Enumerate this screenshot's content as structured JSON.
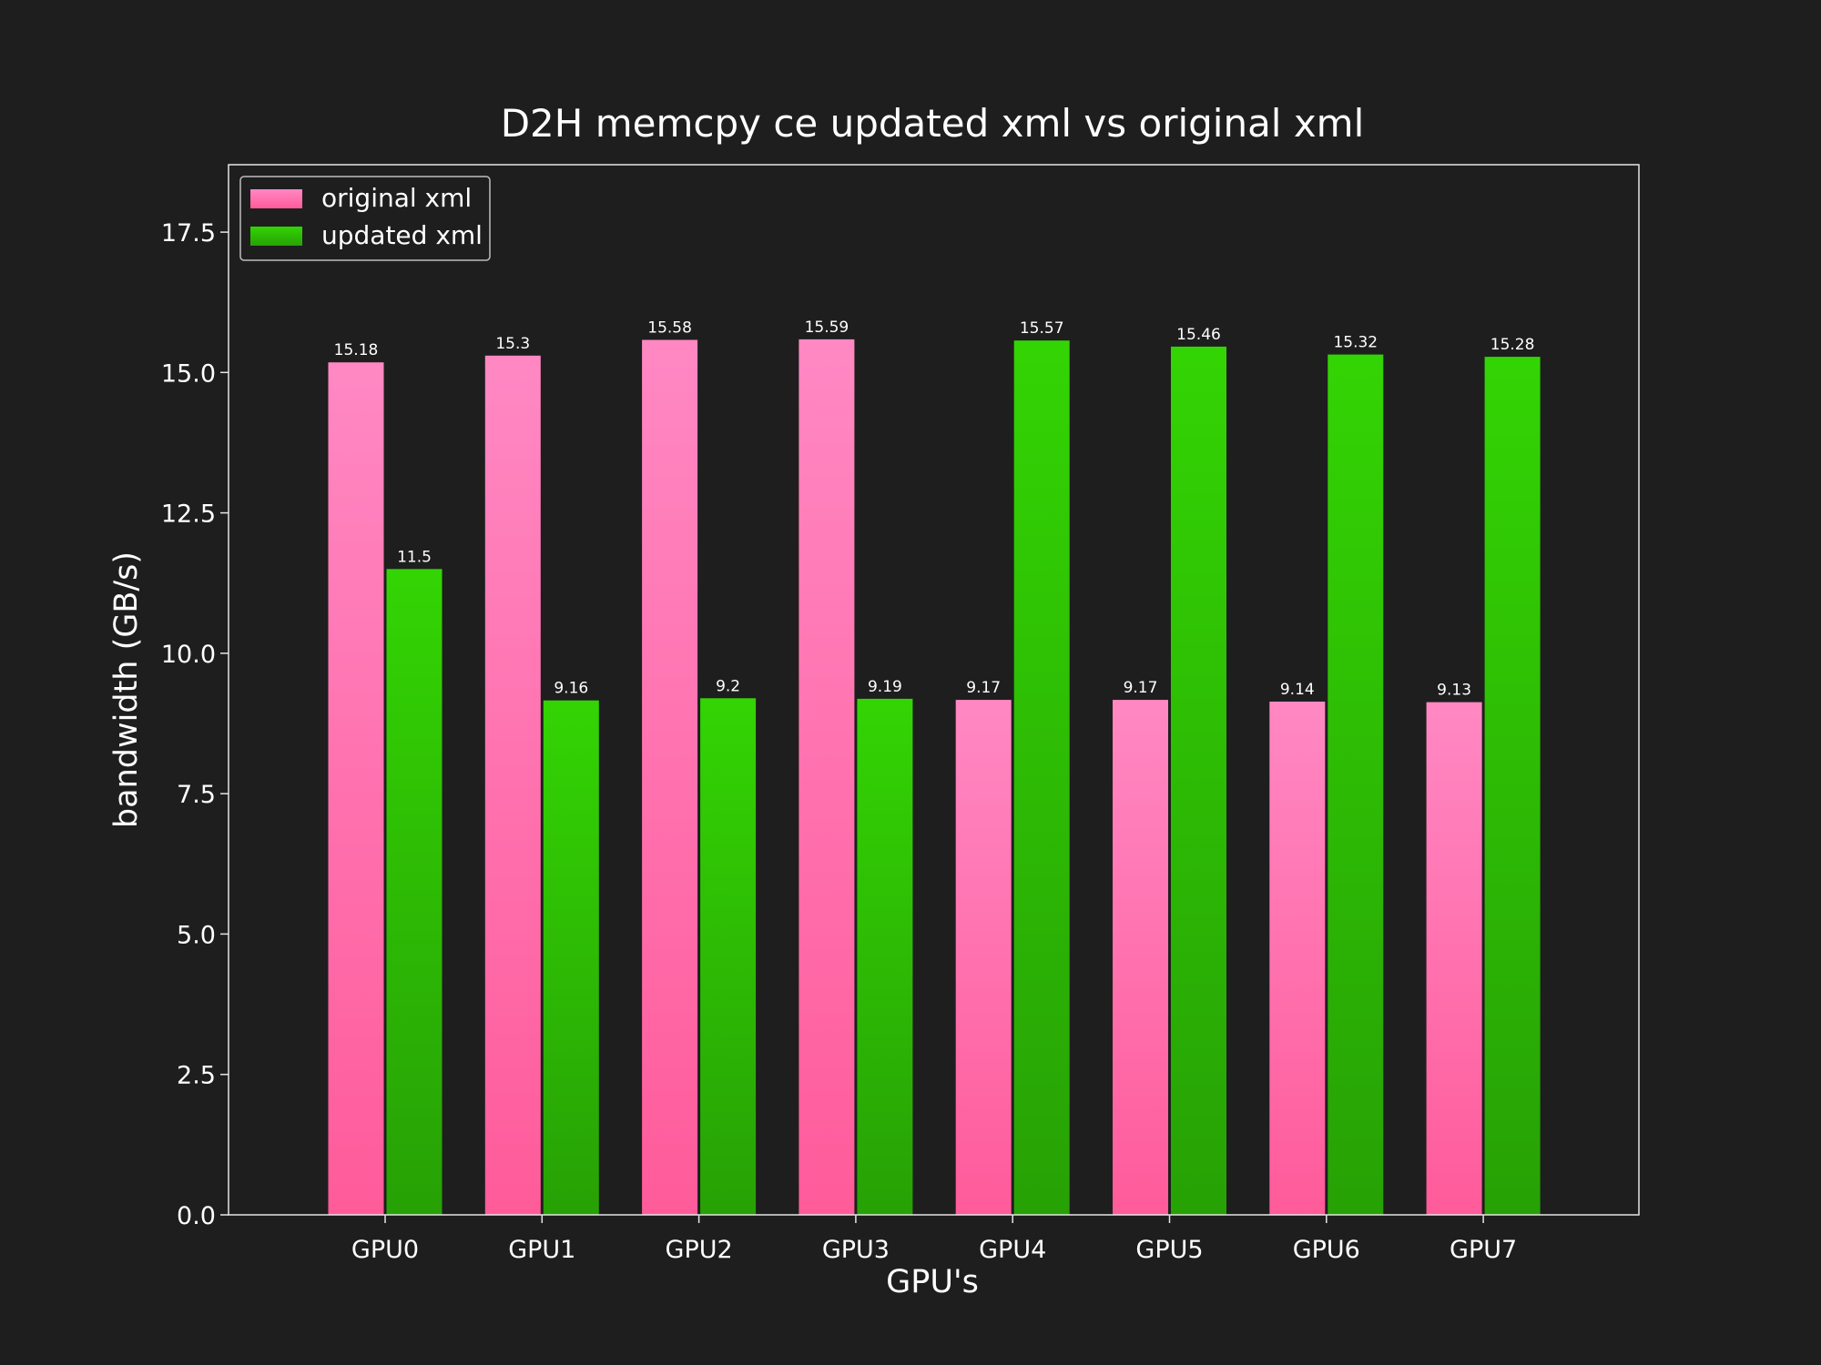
{
  "chart_data": {
    "type": "bar",
    "title": "D2H memcpy ce updated xml vs original xml",
    "xlabel": "GPU's",
    "ylabel": "bandwidth (GB/s)",
    "categories": [
      "GPU0",
      "GPU1",
      "GPU2",
      "GPU3",
      "GPU4",
      "GPU5",
      "GPU6",
      "GPU7"
    ],
    "series": [
      {
        "name": "original xml",
        "color": "#ff88c3",
        "color_bottom": "#ff5b9a",
        "values": [
          15.18,
          15.3,
          15.58,
          15.59,
          9.17,
          9.17,
          9.14,
          9.13
        ],
        "labels": [
          "15.18",
          "15.3",
          "15.58",
          "15.59",
          "9.17",
          "9.17",
          "9.14",
          "9.13"
        ]
      },
      {
        "name": "updated xml",
        "color": "#33d404",
        "color_bottom": "#27a105",
        "values": [
          11.5,
          9.16,
          9.2,
          9.19,
          15.57,
          15.46,
          15.32,
          15.28
        ],
        "labels": [
          "11.5",
          "9.16",
          "9.2",
          "9.19",
          "15.57",
          "15.46",
          "15.32",
          "15.28"
        ]
      }
    ],
    "ylim": [
      0,
      18.7
    ],
    "yticks": [
      "0.0",
      "2.5",
      "5.0",
      "7.5",
      "10.0",
      "12.5",
      "15.0",
      "17.5"
    ],
    "grid": false,
    "legend_position": "top-left",
    "background": "#1e1e1e",
    "text_color": "#ffffff",
    "axes_edge_color": "#e6e6e6"
  }
}
